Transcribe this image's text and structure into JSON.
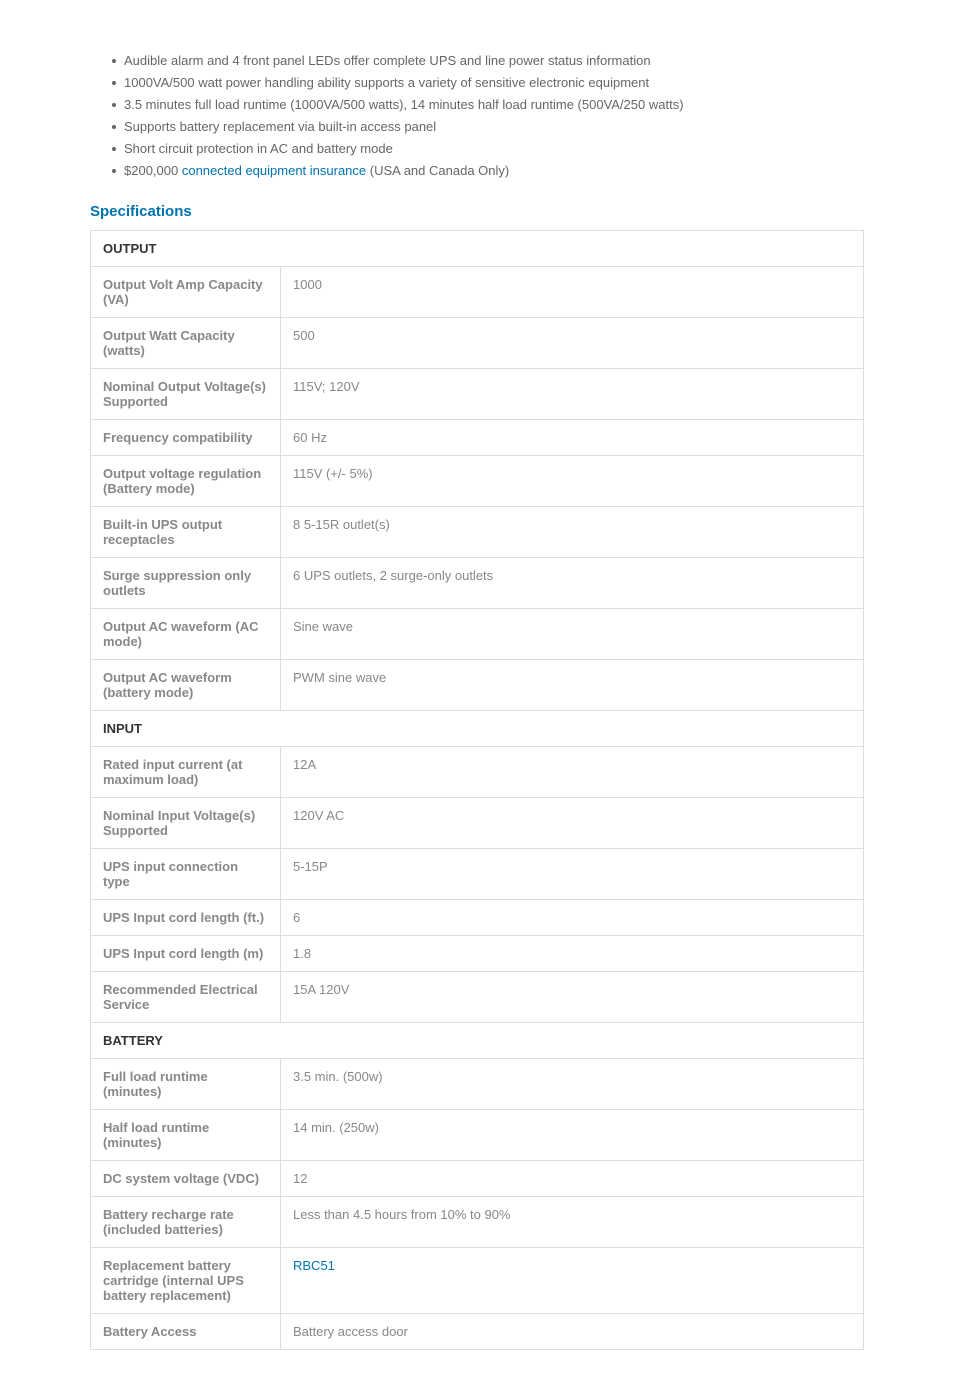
{
  "features": [
    {
      "text": "Audible alarm and 4 front panel LEDs offer complete UPS and line power status information"
    },
    {
      "text": "1000VA/500 watt power handling ability supports a variety of sensitive electronic equipment"
    },
    {
      "text": "3.5 minutes full load runtime (1000VA/500 watts), 14 minutes half load runtime (500VA/250 watts)"
    },
    {
      "text": "Supports battery replacement via built-in access panel"
    },
    {
      "text": "Short circuit protection in AC and battery mode"
    },
    {
      "prefix": "$200,000 ",
      "link": "connected equipment insurance",
      "suffix": " (USA and Canada Only)"
    }
  ],
  "specs_heading": "Specifications",
  "groups": {
    "output": "OUTPUT",
    "input": "INPUT",
    "battery": "BATTERY"
  },
  "rows": {
    "out_va": {
      "label": "Output Volt Amp Capacity (VA)",
      "value": "1000"
    },
    "out_watt": {
      "label": "Output Watt Capacity (watts)",
      "value": "500"
    },
    "out_nomv": {
      "label": "Nominal Output Voltage(s) Supported",
      "value": "115V; 120V"
    },
    "out_freq": {
      "label": "Frequency compatibility",
      "value": "60 Hz"
    },
    "out_reg": {
      "label": "Output voltage regulation (Battery mode)",
      "value": "115V (+/- 5%)"
    },
    "out_recept": {
      "label": "Built-in UPS output receptacles",
      "value": "8 5-15R outlet(s)"
    },
    "out_surge": {
      "label": "Surge suppression only outlets",
      "value": "6 UPS outlets, 2 surge-only outlets"
    },
    "out_acwave": {
      "label": "Output AC waveform (AC mode)",
      "value": "Sine wave"
    },
    "out_battwave": {
      "label": "Output AC waveform (battery mode)",
      "value": "PWM sine wave"
    },
    "in_rated": {
      "label": "Rated input current (at maximum load)",
      "value": "12A"
    },
    "in_nomv": {
      "label": "Nominal Input Voltage(s) Supported",
      "value": "120V AC"
    },
    "in_conn": {
      "label": "UPS input connection type",
      "value": "5-15P"
    },
    "in_cordft": {
      "label": "UPS Input cord length (ft.)",
      "value": "6"
    },
    "in_cordm": {
      "label": "UPS Input cord length (m)",
      "value": "1.8"
    },
    "in_elec": {
      "label": "Recommended Electrical Service",
      "value": "15A 120V"
    },
    "bat_full": {
      "label": "Full load runtime (minutes)",
      "value": "3.5 min. (500w)"
    },
    "bat_half": {
      "label": "Half load runtime (minutes)",
      "value": "14 min. (250w)"
    },
    "bat_dc": {
      "label": "DC system voltage (VDC)",
      "value": "12"
    },
    "bat_recharge": {
      "label": "Battery recharge rate (included batteries)",
      "value": "Less than 4.5 hours from 10% to 90%"
    },
    "bat_replace": {
      "label": "Replacement battery cartridge (internal UPS battery replacement)",
      "link": "RBC51"
    },
    "bat_access": {
      "label": "Battery Access",
      "value": "Battery access door"
    }
  }
}
